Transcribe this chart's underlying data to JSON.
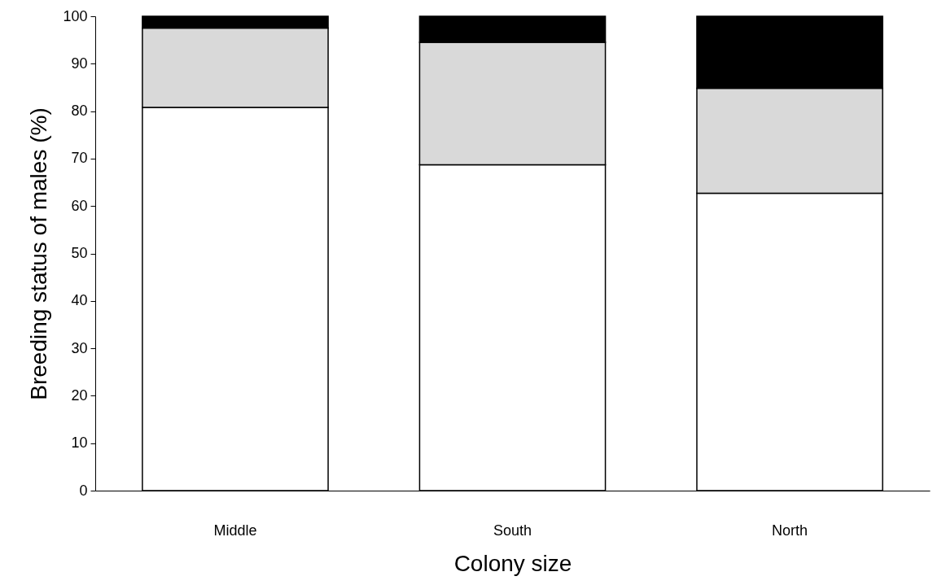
{
  "chart_data": {
    "type": "bar",
    "stacked": true,
    "xlabel": "Colony size",
    "ylabel": "Breeding status of males (%)",
    "categories": [
      "Middle",
      "South",
      "North"
    ],
    "series": [
      {
        "color": "#ffffff",
        "values": [
          80.8,
          68.7,
          62.7
        ]
      },
      {
        "color": "#d9d9d9",
        "values": [
          16.7,
          25.8,
          22.1
        ]
      },
      {
        "color": "#000000",
        "values": [
          2.5,
          5.5,
          15.2
        ]
      }
    ],
    "ylim": [
      0,
      100
    ],
    "yticks": [
      0,
      10,
      20,
      30,
      40,
      50,
      60,
      70,
      80,
      90,
      100
    ],
    "grid": false
  }
}
